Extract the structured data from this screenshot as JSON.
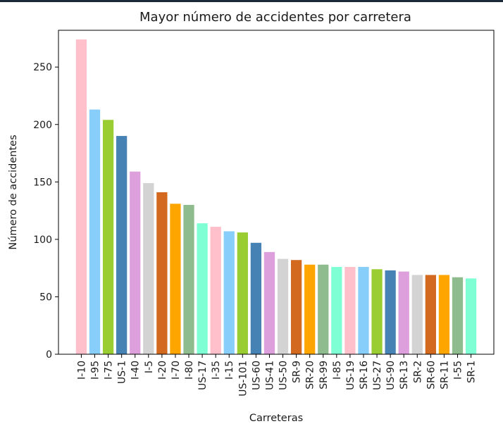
{
  "chart_data": {
    "type": "bar",
    "title": "Mayor número de accidentes por carretera",
    "xlabel": "Carreteras",
    "ylabel": "Número de accidentes",
    "ylim": [
      0,
      282
    ],
    "yticks": [
      0,
      50,
      100,
      150,
      200,
      250
    ],
    "grid": false,
    "categories": [
      "I-10",
      "I-95",
      "I-75",
      "US-1",
      "I-40",
      "I-5",
      "I-20",
      "I-70",
      "I-80",
      "US-17",
      "I-35",
      "I-15",
      "US-101",
      "US-60",
      "US-41",
      "US-50",
      "SR-9",
      "SR-20",
      "SR-99",
      "I-85",
      "US-19",
      "SR-16",
      "US-27",
      "US-90",
      "SR-13",
      "SR-2",
      "SR-60",
      "SR-11",
      "I-55",
      "SR-1"
    ],
    "values": [
      274,
      213,
      204,
      190,
      159,
      149,
      141,
      131,
      130,
      114,
      111,
      107,
      106,
      97,
      89,
      83,
      82,
      78,
      78,
      76,
      76,
      76,
      74,
      73,
      72,
      69,
      69,
      69,
      67,
      66
    ],
    "colors": [
      "#ffc0cb",
      "#87cefa",
      "#9acd32",
      "#4682b4",
      "#dda0dd",
      "#d3d3d3",
      "#d2691e",
      "#ffa500",
      "#8fbc8f",
      "#7fffd4",
      "#ffc0cb",
      "#87cefa",
      "#9acd32",
      "#4682b4",
      "#dda0dd",
      "#d3d3d3",
      "#d2691e",
      "#ffa500",
      "#8fbc8f",
      "#7fffd4",
      "#ffc0cb",
      "#87cefa",
      "#9acd32",
      "#4682b4",
      "#dda0dd",
      "#d3d3d3",
      "#d2691e",
      "#ffa500",
      "#8fbc8f",
      "#7fffd4"
    ]
  }
}
